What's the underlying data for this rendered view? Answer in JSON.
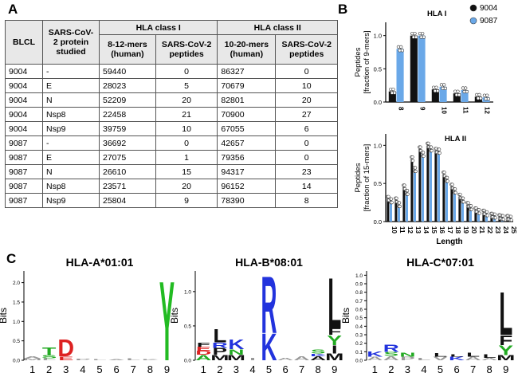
{
  "panel_labels": {
    "a": "A",
    "b": "B",
    "c": "C"
  },
  "table": {
    "header": {
      "blcl": "BLCL",
      "protein": "SARS-CoV-2 protein studied",
      "class1": "HLA class I",
      "class2": "HLA class II",
      "c1_len": "8-12-mers (human)",
      "c1_sars": "SARS-CoV-2 peptides",
      "c2_len": "10-20-mers (human)",
      "c2_sars": "SARS-CoV-2 peptides"
    },
    "rows": [
      [
        "9004",
        "-",
        "59440",
        "0",
        "86327",
        "0"
      ],
      [
        "9004",
        "E",
        "28023",
        "5",
        "70679",
        "10"
      ],
      [
        "9004",
        "N",
        "52209",
        "20",
        "82801",
        "20"
      ],
      [
        "9004",
        "Nsp8",
        "22458",
        "21",
        "70900",
        "27"
      ],
      [
        "9004",
        "Nsp9",
        "39759",
        "10",
        "67055",
        "6"
      ],
      [
        "9087",
        "-",
        "36692",
        "0",
        "42657",
        "0"
      ],
      [
        "9087",
        "E",
        "27075",
        "1",
        "79356",
        "0"
      ],
      [
        "9087",
        "N",
        "26610",
        "15",
        "94317",
        "23"
      ],
      [
        "9087",
        "Nsp8",
        "23571",
        "20",
        "96152",
        "14"
      ],
      [
        "9087",
        "Nsp9",
        "25804",
        "9",
        "78390",
        "8"
      ]
    ]
  },
  "chart_data": [
    {
      "type": "bar",
      "title": "HLA I",
      "ylabel": "Peptides [fraction of 9-mers]",
      "categories": [
        "8",
        "9",
        "10",
        "11",
        "12"
      ],
      "series": [
        {
          "name": "9004",
          "values": [
            0.16,
            1.0,
            0.19,
            0.13,
            0.08
          ],
          "color": "#111111"
        },
        {
          "name": "9087",
          "values": [
            0.8,
            1.0,
            0.23,
            0.18,
            0.07
          ],
          "color": "#6aa8e8"
        }
      ],
      "yticks": [
        "0.0",
        "0.5",
        "1.0"
      ],
      "ylim": [
        0,
        1.2
      ],
      "legend": "top-right"
    },
    {
      "type": "bar",
      "title": "HLA II",
      "xlabel": "Length",
      "ylabel": "Peptides [fraction of 15-mers]",
      "categories": [
        "10",
        "11",
        "12",
        "13",
        "14",
        "15",
        "16",
        "17",
        "18",
        "19",
        "20",
        "21",
        "22",
        "23",
        "24",
        "25"
      ],
      "series": [
        {
          "name": "9004",
          "values": [
            0.3,
            0.28,
            0.45,
            0.82,
            0.95,
            1.0,
            0.93,
            0.62,
            0.46,
            0.33,
            0.22,
            0.15,
            0.12,
            0.08,
            0.06,
            0.05
          ],
          "color": "#111111"
        },
        {
          "name": "9087",
          "values": [
            0.27,
            0.22,
            0.38,
            0.68,
            0.88,
            0.95,
            0.92,
            0.55,
            0.4,
            0.28,
            0.18,
            0.13,
            0.1,
            0.07,
            0.05,
            0.04
          ],
          "color": "#6aa8e8"
        }
      ],
      "yticks": [
        "0.0",
        "0.5",
        "1.0"
      ],
      "ylim": [
        0,
        1.15
      ]
    }
  ],
  "logos": [
    {
      "title": "HLA-A*01:01",
      "ylabel": "Bits",
      "positions": [
        "1",
        "2",
        "3",
        "4",
        "5",
        "6",
        "7",
        "8",
        "9"
      ],
      "yticks": [
        "0.0",
        "0.5",
        "1.0",
        "1.5",
        "2.0"
      ],
      "ymax": 2.3,
      "columns": [
        [
          [
            "M",
            0.05,
            "#999999"
          ],
          [
            "A",
            0.05,
            "#999999"
          ]
        ],
        [
          [
            "L",
            0.05,
            "#999999"
          ],
          [
            "S",
            0.08,
            "#22aa22"
          ],
          [
            "T",
            0.2,
            "#22aa22"
          ]
        ],
        [
          [
            "E",
            0.1,
            "#dd2222"
          ],
          [
            "D",
            0.45,
            "#dd2222"
          ]
        ],
        [
          [
            "P",
            0.04,
            "#999999"
          ]
        ],
        [
          [
            "L",
            0.03,
            "#999999"
          ]
        ],
        [
          [
            "A",
            0.03,
            "#999999"
          ]
        ],
        [
          [
            "L",
            0.05,
            "#999999"
          ]
        ],
        [
          [
            "K",
            0.03,
            "#999999"
          ]
        ],
        [
          [
            "Y",
            2.1,
            "#22bb22"
          ]
        ]
      ]
    },
    {
      "title": "HLA-B*08:01",
      "ylabel": "Bits",
      "positions": [
        "1",
        "2",
        "3",
        "4",
        "5",
        "6",
        "7",
        "8",
        "9"
      ],
      "yticks": [
        "0.0",
        "0.5",
        "1.0"
      ],
      "ymax": 1.3,
      "columns": [
        [
          [
            "A",
            0.08,
            "#22aa22"
          ],
          [
            "D",
            0.06,
            "#dd2222"
          ],
          [
            "E",
            0.06,
            "#dd2222"
          ],
          [
            "F",
            0.06,
            "#111111"
          ]
        ],
        [
          [
            "M",
            0.08,
            "#111111"
          ],
          [
            "P",
            0.1,
            "#111111"
          ],
          [
            "R",
            0.08,
            "#2233dd"
          ],
          [
            "L",
            0.2,
            "#111111"
          ]
        ],
        [
          [
            "M",
            0.08,
            "#111111"
          ],
          [
            "N",
            0.08,
            "#22aa22"
          ],
          [
            "K",
            0.15,
            "#2233dd"
          ]
        ],
        [
          [
            "I",
            0.04,
            "#999999"
          ]
        ],
        [
          [
            "K",
            0.4,
            "#2233dd"
          ],
          [
            "R",
            0.85,
            "#2233dd"
          ]
        ],
        [
          [
            "A",
            0.04,
            "#999999"
          ]
        ],
        [
          [
            "A",
            0.06,
            "#999999"
          ]
        ],
        [
          [
            "A",
            0.06,
            "#111111"
          ],
          [
            "K",
            0.04,
            "#2233dd"
          ],
          [
            "S",
            0.06,
            "#22aa22"
          ]
        ],
        [
          [
            "M",
            0.1,
            "#111111"
          ],
          [
            "I",
            0.12,
            "#111111"
          ],
          [
            "Y",
            0.15,
            "#22aa22"
          ],
          [
            "F",
            0.1,
            "#111111"
          ],
          [
            "L",
            0.75,
            "#111111"
          ]
        ]
      ]
    },
    {
      "title": "HLA-C*07:01",
      "ylabel": "Bits",
      "positions": [
        "1",
        "2",
        "3",
        "4",
        "5",
        "6",
        "7",
        "8",
        "9"
      ],
      "yticks": [
        "0.0",
        "0.1",
        "0.2",
        "0.3",
        "0.4",
        "0.5",
        "0.6",
        "0.7",
        "0.8",
        "0.9",
        "1.0"
      ],
      "ymax": 1.05,
      "columns": [
        [
          [
            "A",
            0.04,
            "#999999"
          ],
          [
            "K",
            0.06,
            "#2233dd"
          ]
        ],
        [
          [
            "A",
            0.05,
            "#999999"
          ],
          [
            "S",
            0.05,
            "#22aa22"
          ],
          [
            "R",
            0.09,
            "#2233dd"
          ]
        ],
        [
          [
            "P",
            0.04,
            "#999999"
          ],
          [
            "N",
            0.05,
            "#22aa22"
          ]
        ],
        [
          [
            "L",
            0.03,
            "#999999"
          ]
        ],
        [
          [
            "V",
            0.04,
            "#999999"
          ],
          [
            "L",
            0.04,
            "#111111"
          ]
        ],
        [
          [
            "K",
            0.04,
            "#2233dd"
          ],
          [
            "L",
            0.03,
            "#111111"
          ]
        ],
        [
          [
            "A",
            0.04,
            "#999999"
          ],
          [
            "L",
            0.05,
            "#111111"
          ]
        ],
        [
          [
            "A",
            0.03,
            "#999999"
          ],
          [
            "L",
            0.04,
            "#111111"
          ]
        ],
        [
          [
            "M",
            0.06,
            "#111111"
          ],
          [
            "Y",
            0.12,
            "#22aa22"
          ],
          [
            "F",
            0.12,
            "#111111"
          ],
          [
            "L",
            0.52,
            "#111111"
          ]
        ]
      ]
    }
  ]
}
